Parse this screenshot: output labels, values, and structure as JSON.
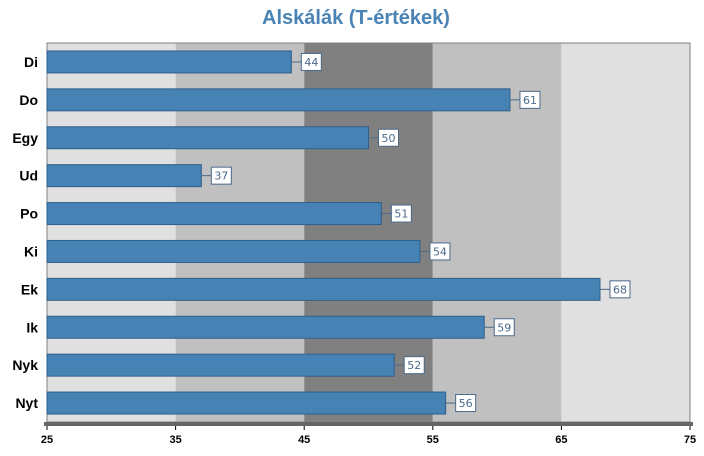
{
  "chart_data": {
    "type": "bar",
    "orientation": "horizontal",
    "title": "Alskálák (T-értékek)",
    "xlabel": "",
    "ylabel": "",
    "categories": [
      "Di",
      "Do",
      "Egy",
      "Ud",
      "Po",
      "Ki",
      "Ek",
      "Ik",
      "Nyk",
      "Nyt"
    ],
    "values": [
      44,
      61,
      50,
      37,
      51,
      54,
      68,
      59,
      52,
      56
    ],
    "xlim": [
      25,
      75
    ],
    "xticks": [
      "25",
      "35",
      "45",
      "55",
      "65",
      "75"
    ],
    "background_bands": [
      {
        "from": 25,
        "to": 35,
        "color": "#e0e0e0"
      },
      {
        "from": 35,
        "to": 45,
        "color": "#c0c0c0"
      },
      {
        "from": 45,
        "to": 55,
        "color": "#808080"
      },
      {
        "from": 55,
        "to": 65,
        "color": "#c0c0c0"
      },
      {
        "from": 65,
        "to": 75,
        "color": "#e0e0e0"
      }
    ],
    "bar_color": "#4682b4",
    "grid": false,
    "legend": "none"
  }
}
